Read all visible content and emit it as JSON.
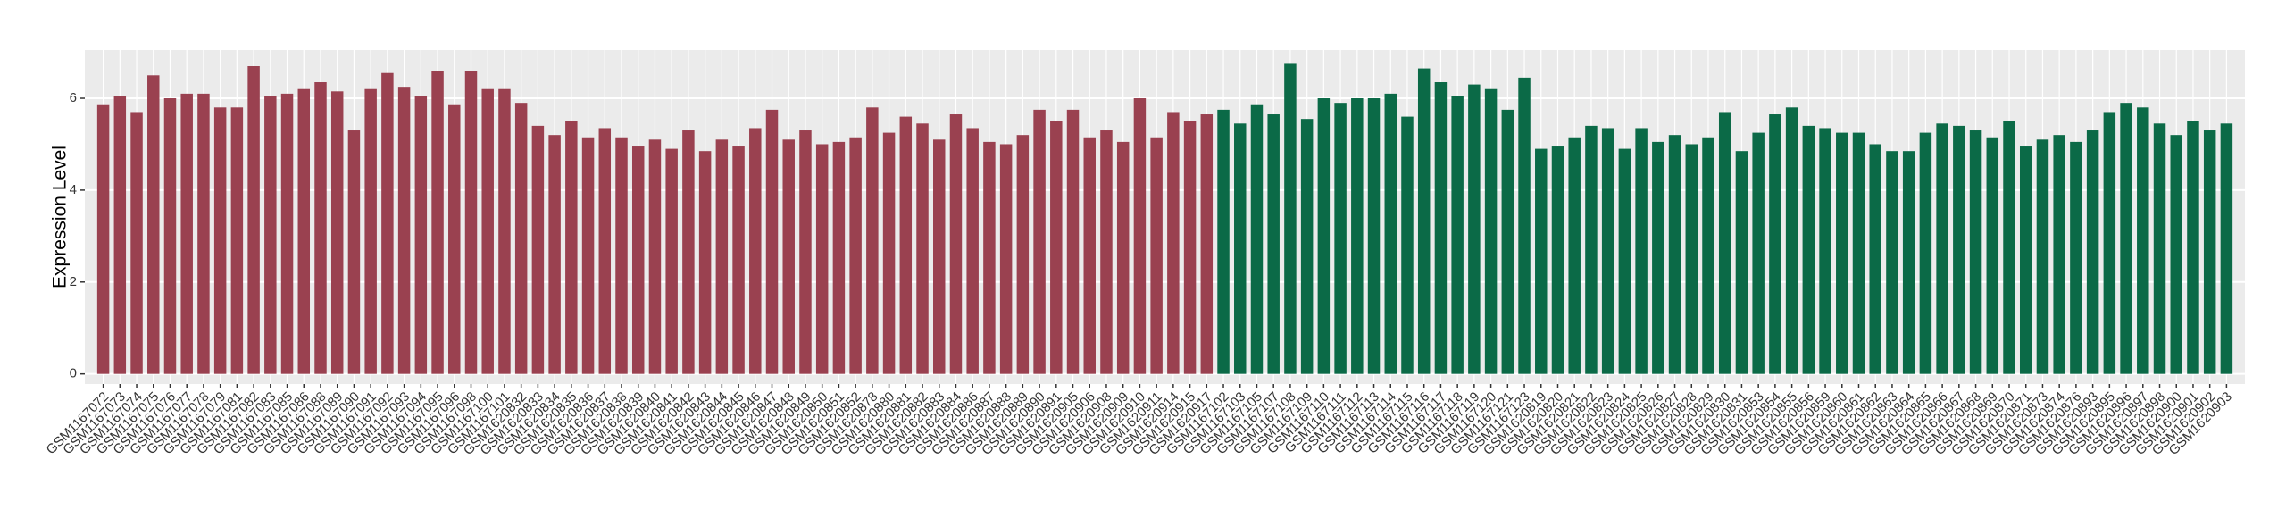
{
  "chart_data": {
    "type": "bar",
    "y_label": "Expression Level",
    "categories": [
      "GSM1167072",
      "GSM1167073",
      "GSM1167074",
      "GSM1167075",
      "GSM1167076",
      "GSM1167077",
      "GSM1167078",
      "GSM1167079",
      "GSM1167081",
      "GSM1167082",
      "GSM1167083",
      "GSM1167085",
      "GSM1167086",
      "GSM1167088",
      "GSM1167089",
      "GSM1167090",
      "GSM1167091",
      "GSM1167092",
      "GSM1167093",
      "GSM1167094",
      "GSM1167095",
      "GSM1167096",
      "GSM1167098",
      "GSM1167100",
      "GSM1167101",
      "GSM1620832",
      "GSM1620833",
      "GSM1620834",
      "GSM1620835",
      "GSM1620836",
      "GSM1620837",
      "GSM1620838",
      "GSM1620839",
      "GSM1620840",
      "GSM1620841",
      "GSM1620842",
      "GSM1620843",
      "GSM1620844",
      "GSM1620845",
      "GSM1620846",
      "GSM1620847",
      "GSM1620848",
      "GSM1620849",
      "GSM1620850",
      "GSM1620851",
      "GSM1620852",
      "GSM1620878",
      "GSM1620880",
      "GSM1620881",
      "GSM1620882",
      "GSM1620883",
      "GSM1620884",
      "GSM1620886",
      "GSM1620887",
      "GSM1620888",
      "GSM1620889",
      "GSM1620890",
      "GSM1620891",
      "GSM1620905",
      "GSM1620906",
      "GSM1620908",
      "GSM1620909",
      "GSM1620910",
      "GSM1620911",
      "GSM1620914",
      "GSM1620915",
      "GSM1620917",
      "GSM1167102",
      "GSM1167103",
      "GSM1167105",
      "GSM1167107",
      "GSM1167108",
      "GSM1167109",
      "GSM1167110",
      "GSM1167111",
      "GSM1167112",
      "GSM1167113",
      "GSM1167114",
      "GSM1167115",
      "GSM1167116",
      "GSM1167117",
      "GSM1167118",
      "GSM1167119",
      "GSM1167120",
      "GSM1167121",
      "GSM1167123",
      "GSM1620819",
      "GSM1620820",
      "GSM1620821",
      "GSM1620822",
      "GSM1620823",
      "GSM1620824",
      "GSM1620825",
      "GSM1620826",
      "GSM1620827",
      "GSM1620828",
      "GSM1620829",
      "GSM1620830",
      "GSM1620831",
      "GSM1620853",
      "GSM1620854",
      "GSM1620855",
      "GSM1620856",
      "GSM1620859",
      "GSM1620860",
      "GSM1620861",
      "GSM1620862",
      "GSM1620863",
      "GSM1620864",
      "GSM1620865",
      "GSM1620866",
      "GSM1620867",
      "GSM1620868",
      "GSM1620869",
      "GSM1620870",
      "GSM1620871",
      "GSM1620873",
      "GSM1620874",
      "GSM1620876",
      "GSM1620893",
      "GSM1620895",
      "GSM1620896",
      "GSM1620897",
      "GSM1620898",
      "GSM1620900",
      "GSM1620901",
      "GSM1620902",
      "GSM1620903"
    ],
    "values": [
      5.85,
      6.05,
      5.7,
      6.5,
      6.0,
      6.1,
      6.1,
      5.8,
      5.8,
      6.7,
      6.05,
      6.1,
      6.2,
      6.35,
      6.15,
      5.3,
      6.2,
      6.55,
      6.25,
      6.05,
      6.6,
      5.85,
      6.6,
      6.2,
      6.2,
      5.9,
      5.4,
      5.2,
      5.5,
      5.15,
      5.35,
      5.15,
      4.95,
      5.1,
      4.9,
      5.3,
      4.85,
      5.1,
      4.95,
      5.35,
      5.75,
      5.1,
      5.3,
      5.0,
      5.05,
      5.15,
      5.8,
      5.25,
      5.6,
      5.45,
      5.1,
      5.65,
      5.35,
      5.05,
      5.0,
      5.2,
      5.75,
      5.5,
      5.75,
      5.15,
      5.3,
      5.05,
      6.0,
      5.15,
      5.7,
      5.5,
      5.65,
      5.75,
      5.45,
      5.85,
      5.65,
      6.75,
      5.55,
      6.0,
      5.9,
      6.0,
      6.0,
      6.1,
      5.6,
      6.65,
      6.35,
      6.05,
      6.3,
      6.2,
      5.75,
      6.45,
      4.9,
      4.95,
      5.15,
      5.4,
      5.35,
      4.9,
      5.35,
      5.05,
      5.2,
      5.0,
      5.15,
      5.7,
      4.85,
      5.25,
      5.65,
      5.8,
      5.4,
      5.35,
      5.25,
      5.25,
      5.0,
      4.85,
      4.85,
      5.25,
      5.45,
      5.4,
      5.3,
      5.15,
      5.5,
      4.95,
      5.1,
      5.2,
      5.05,
      5.3,
      5.7,
      5.9,
      5.8,
      5.45,
      5.2,
      5.5,
      5.3,
      5.45
    ],
    "colors": [
      "#9a4150",
      "#9a4150",
      "#9a4150",
      "#9a4150",
      "#9a4150",
      "#9a4150",
      "#9a4150",
      "#9a4150",
      "#9a4150",
      "#9a4150",
      "#9a4150",
      "#9a4150",
      "#9a4150",
      "#9a4150",
      "#9a4150",
      "#9a4150",
      "#9a4150",
      "#9a4150",
      "#9a4150",
      "#9a4150",
      "#9a4150",
      "#9a4150",
      "#9a4150",
      "#9a4150",
      "#9a4150",
      "#9a4150",
      "#9a4150",
      "#9a4150",
      "#9a4150",
      "#9a4150",
      "#9a4150",
      "#9a4150",
      "#9a4150",
      "#9a4150",
      "#9a4150",
      "#9a4150",
      "#9a4150",
      "#9a4150",
      "#9a4150",
      "#9a4150",
      "#9a4150",
      "#9a4150",
      "#9a4150",
      "#9a4150",
      "#9a4150",
      "#9a4150",
      "#9a4150",
      "#9a4150",
      "#9a4150",
      "#9a4150",
      "#9a4150",
      "#9a4150",
      "#9a4150",
      "#9a4150",
      "#9a4150",
      "#9a4150",
      "#9a4150",
      "#9a4150",
      "#9a4150",
      "#9a4150",
      "#9a4150",
      "#9a4150",
      "#9a4150",
      "#9a4150",
      "#9a4150",
      "#9a4150",
      "#9a4150",
      "#0b6a47",
      "#0b6a47",
      "#0b6a47",
      "#0b6a47",
      "#0b6a47",
      "#0b6a47",
      "#0b6a47",
      "#0b6a47",
      "#0b6a47",
      "#0b6a47",
      "#0b6a47",
      "#0b6a47",
      "#0b6a47",
      "#0b6a47",
      "#0b6a47",
      "#0b6a47",
      "#0b6a47",
      "#0b6a47",
      "#0b6a47",
      "#0b6a47",
      "#0b6a47",
      "#0b6a47",
      "#0b6a47",
      "#0b6a47",
      "#0b6a47",
      "#0b6a47",
      "#0b6a47",
      "#0b6a47",
      "#0b6a47",
      "#0b6a47",
      "#0b6a47",
      "#0b6a47",
      "#0b6a47",
      "#0b6a47",
      "#0b6a47",
      "#0b6a47",
      "#0b6a47",
      "#0b6a47",
      "#0b6a47",
      "#0b6a47",
      "#0b6a47",
      "#0b6a47",
      "#0b6a47",
      "#0b6a47",
      "#0b6a47",
      "#0b6a47",
      "#0b6a47",
      "#0b6a47",
      "#0b6a47",
      "#0b6a47",
      "#0b6a47",
      "#0b6a47",
      "#0b6a47",
      "#0b6a47",
      "#0b6a47",
      "#0b6a47",
      "#0b6a47",
      "#0b6a47",
      "#0b6a47",
      "#0b6a47",
      "#0b6a47",
      "#0b6a47"
    ],
    "ylim": [
      -0.22,
      7.05
    ],
    "yticks": [
      0,
      2,
      4,
      6
    ],
    "grid": true
  }
}
